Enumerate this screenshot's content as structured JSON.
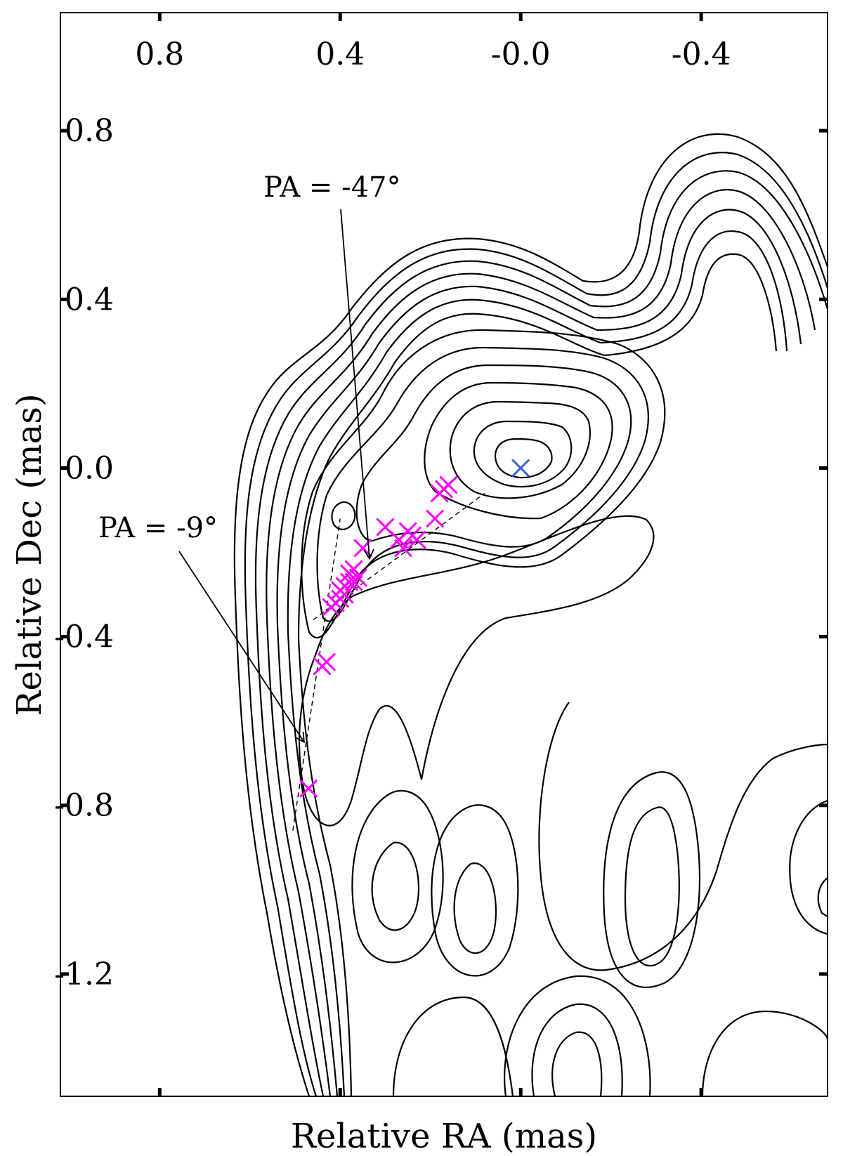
{
  "chart_data": {
    "type": "scatter",
    "title": "",
    "xlabel": "Relative RA (mas)",
    "ylabel": "Relative Dec (mas)",
    "xlim": [
      1.02,
      -0.68
    ],
    "ylim": [
      -1.49,
      1.08
    ],
    "x_ticks": [
      {
        "value": 0.8,
        "label": "0.8"
      },
      {
        "value": 0.4,
        "label": "0.4"
      },
      {
        "value": 0.0,
        "label": "-0.0"
      },
      {
        "value": -0.4,
        "label": "-0.4"
      }
    ],
    "y_ticks": [
      {
        "value": 0.8,
        "label": "0.8"
      },
      {
        "value": 0.4,
        "label": "0.4"
      },
      {
        "value": 0.0,
        "label": "0.0"
      },
      {
        "value": -0.4,
        "label": "-0.4"
      },
      {
        "value": -0.8,
        "label": "-0.8"
      },
      {
        "value": -1.2,
        "label": "-1.2"
      }
    ],
    "x_tick_position": "top",
    "grid": false,
    "series": [
      {
        "marker": "x",
        "color": "#ff00ff",
        "points": [
          {
            "x": 0.47,
            "y": -0.76
          },
          {
            "x": 0.44,
            "y": -0.47
          },
          {
            "x": 0.43,
            "y": -0.46
          },
          {
            "x": 0.42,
            "y": -0.33
          },
          {
            "x": 0.41,
            "y": -0.32
          },
          {
            "x": 0.4,
            "y": -0.31
          },
          {
            "x": 0.4,
            "y": -0.29
          },
          {
            "x": 0.39,
            "y": -0.3
          },
          {
            "x": 0.39,
            "y": -0.28
          },
          {
            "x": 0.38,
            "y": -0.27
          },
          {
            "x": 0.38,
            "y": -0.25
          },
          {
            "x": 0.37,
            "y": -0.24
          },
          {
            "x": 0.37,
            "y": -0.27
          },
          {
            "x": 0.36,
            "y": -0.26
          },
          {
            "x": 0.35,
            "y": -0.19
          },
          {
            "x": 0.3,
            "y": -0.14
          },
          {
            "x": 0.27,
            "y": -0.17
          },
          {
            "x": 0.26,
            "y": -0.19
          },
          {
            "x": 0.25,
            "y": -0.15
          },
          {
            "x": 0.24,
            "y": -0.16
          },
          {
            "x": 0.23,
            "y": -0.17
          },
          {
            "x": 0.19,
            "y": -0.12
          },
          {
            "x": 0.18,
            "y": -0.06
          },
          {
            "x": 0.17,
            "y": -0.05
          },
          {
            "x": 0.16,
            "y": -0.04
          }
        ]
      },
      {
        "marker": "x",
        "color": "#3a5fcd",
        "points": [
          {
            "x": 0.0,
            "y": 0.0
          }
        ]
      }
    ],
    "fit_lines": [
      {
        "x": [
          0.505,
          0.4
        ],
        "y": [
          -0.86,
          -0.12
        ]
      },
      {
        "x": [
          0.46,
          0.08
        ],
        "y": [
          -0.36,
          -0.06
        ]
      }
    ],
    "annotations": [
      {
        "text": "PA = -47°",
        "arrow_to": {
          "x": 0.335,
          "y": -0.215
        }
      },
      {
        "text": "PA = -9°",
        "arrow_to": {
          "x": 0.48,
          "y": -0.65
        }
      }
    ],
    "contours": {
      "color": "#000000",
      "levels_count": 15
    }
  }
}
